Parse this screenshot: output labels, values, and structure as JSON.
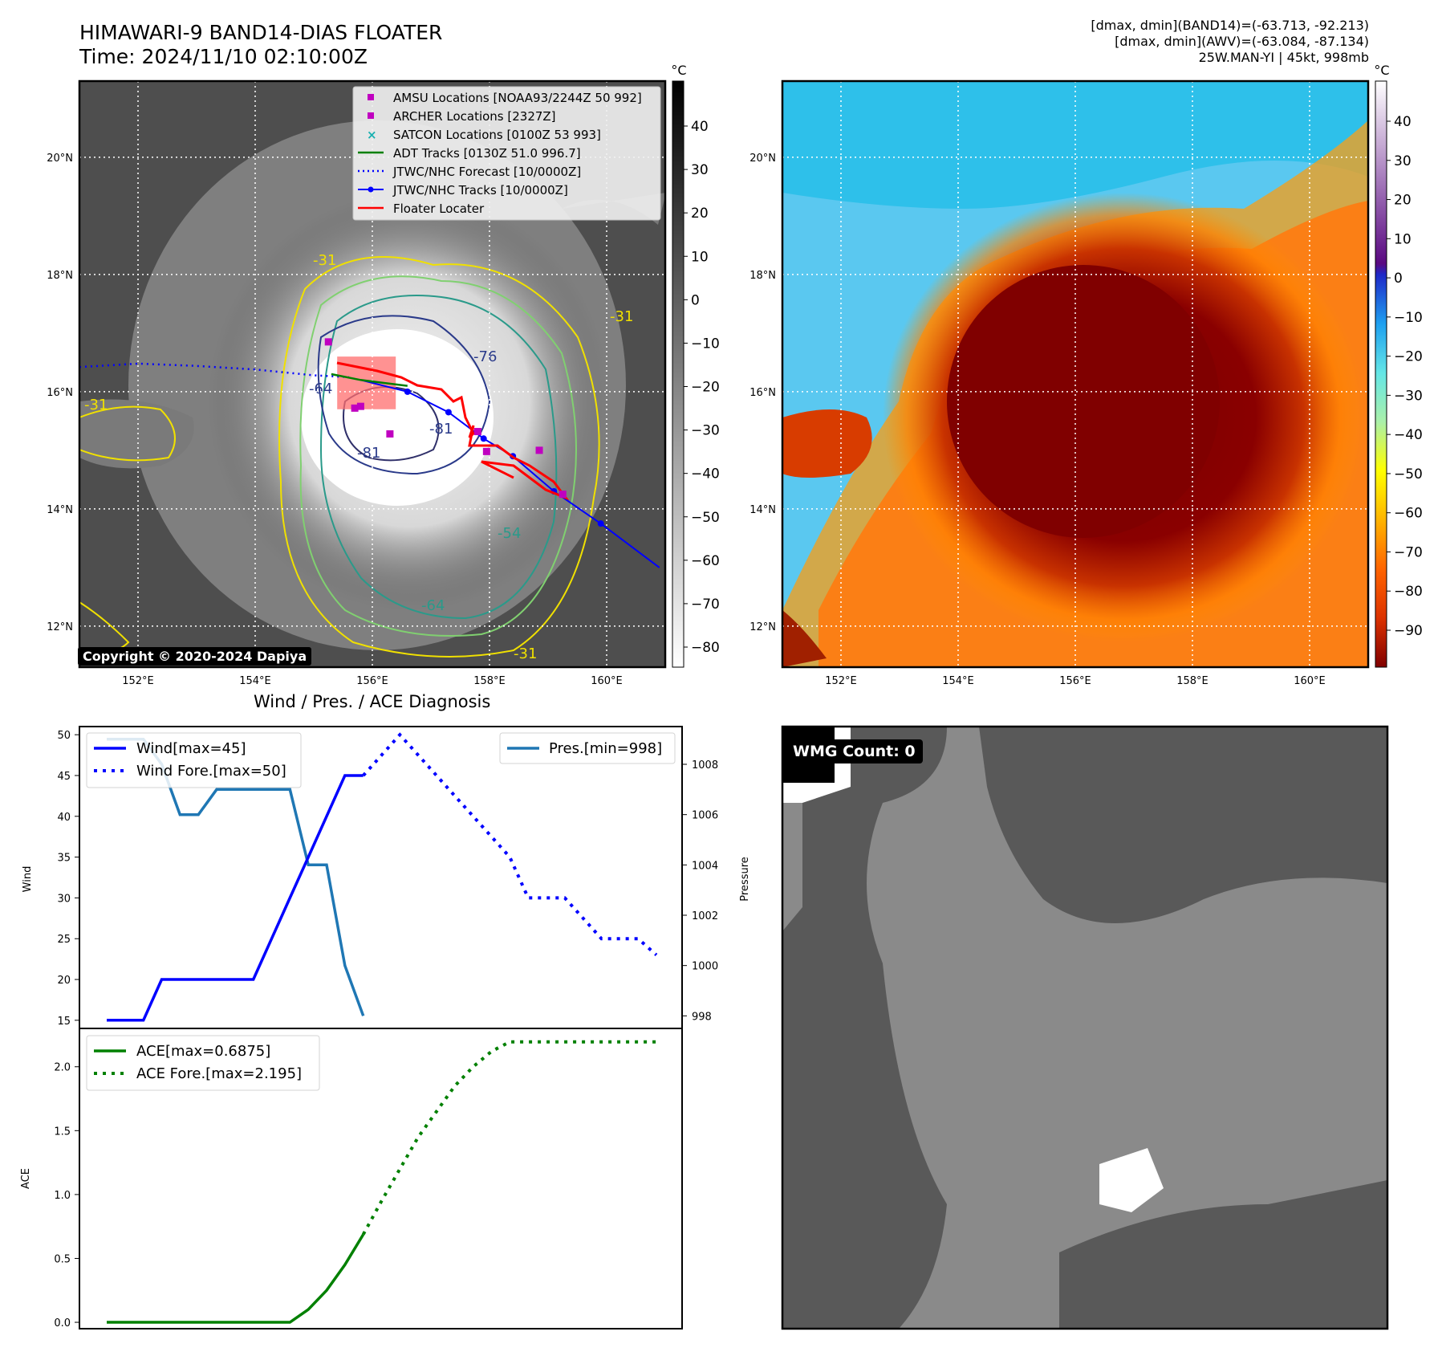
{
  "header": {
    "title_line1": "HIMAWARI-9 BAND14-DIAS FLOATER",
    "title_line2": "Time: 2024/11/10 02:10:00Z",
    "info_line1": "[dmax, dmin](BAND14)=(-63.713, -92.213)",
    "info_line2": "[dmax, dmin](AWV)=(-63.084, -87.134)",
    "info_line3": "25W.MAN-YI | 45kt, 998mb"
  },
  "copyright": "Copyright © 2020-2024 Dapiya",
  "wmg_label": "WMG Count: 0",
  "map": {
    "lat_labels": [
      "20°N",
      "18°N",
      "16°N",
      "14°N",
      "12°N"
    ],
    "lon_labels": [
      "152°E",
      "154°E",
      "156°E",
      "158°E",
      "160°E"
    ],
    "contour_labels": [
      "-76",
      "-64",
      "-81",
      "-81",
      "-54",
      "-64",
      "-31",
      "-31",
      "-31",
      "-31"
    ],
    "legend": [
      {
        "label": "AMSU Locations [NOAA93/2244Z 50 992]",
        "color": "#c000c0"
      },
      {
        "label": "ARCHER Locations [2327Z]",
        "color": "#c000c0"
      },
      {
        "label": "SATCON Locations [0100Z 53 993]",
        "color": "#18b0b0"
      },
      {
        "label": "ADT Tracks [0130Z 51.0 996.7]",
        "color": "#008000"
      },
      {
        "label": "JTWC/NHC Forecast [10/0000Z]",
        "color": "#0000ff"
      },
      {
        "label": "JTWC/NHC Tracks [10/0000Z]",
        "color": "#0000ff"
      },
      {
        "label": "Floater Locater",
        "color": "#ff0000"
      }
    ],
    "jtwc_forecast": {
      "lon": [
        151.0,
        152.0,
        153.0,
        154.0,
        155.0,
        155.6
      ],
      "lat": [
        16.42,
        16.48,
        16.44,
        16.38,
        16.28,
        16.25
      ]
    },
    "jtwc_track": {
      "lon": [
        155.8,
        156.6,
        157.3,
        157.9,
        158.4,
        159.1,
        159.9,
        160.9
      ],
      "lat": [
        16.2,
        16.0,
        15.65,
        15.2,
        14.9,
        14.3,
        13.75,
        13.0
      ]
    },
    "adt_track": {
      "lon": [
        155.3,
        155.8,
        156.2,
        156.6
      ],
      "lat": [
        16.3,
        16.2,
        16.15,
        16.1
      ]
    },
    "amsu_points": {
      "lon": [
        155.25,
        155.7,
        155.8,
        156.3,
        157.8,
        157.95,
        158.85,
        159.25
      ],
      "lat": [
        16.85,
        15.72,
        15.75,
        15.28,
        15.32,
        14.98,
        15.0,
        14.25
      ]
    },
    "floater_box": {
      "lon_min": 155.4,
      "lon_max": 156.4,
      "lat_min": 15.7,
      "lat_max": 16.6
    }
  },
  "colorbars": {
    "unit": "°C",
    "left_ticks": [
      "40",
      "30",
      "20",
      "10",
      "0",
      "−10",
      "−20",
      "−30",
      "−40",
      "−50",
      "−60",
      "−70",
      "−80"
    ],
    "right_ticks": [
      "40",
      "30",
      "20",
      "10",
      "0",
      "−10",
      "−20",
      "−30",
      "−40",
      "−50",
      "−60",
      "−70",
      "−80",
      "−90"
    ],
    "gray_top": "#000000",
    "gray_bottom": "#ffffff",
    "warm_top": "#ffffff",
    "warm_mid": "#5a0a82",
    "cold_stops": [
      "#1e28c8",
      "#1ea0f0",
      "#64e6e6",
      "#aaf0aa",
      "#ffff00",
      "#ffb400",
      "#ff6400",
      "#dc3200",
      "#800000"
    ]
  },
  "chart_data": [
    {
      "type": "line",
      "title": "Wind / Pres. / ACE Diagnosis",
      "ylabel": "Wind",
      "ylim": [
        14,
        51
      ],
      "y_ticks": [
        "50",
        "45",
        "40",
        "35",
        "30",
        "25",
        "20",
        "15"
      ],
      "x": [
        0,
        1,
        2,
        3,
        4,
        5,
        6,
        7,
        8,
        9,
        10,
        11,
        12,
        13,
        14,
        15,
        16,
        17,
        18,
        19,
        20,
        21,
        22,
        23,
        24,
        25,
        26,
        27,
        28,
        29,
        30
      ],
      "series": [
        {
          "name": "Wind[max=45]",
          "style": "solid",
          "color": "#0000ff",
          "x": [
            0,
            1,
            2,
            3,
            4,
            5,
            6,
            7,
            8,
            9,
            10,
            11,
            12,
            13,
            14
          ],
          "values": [
            15,
            15,
            15,
            20,
            20,
            20,
            20,
            20,
            20,
            25,
            30,
            35,
            40,
            45,
            45
          ]
        },
        {
          "name": "Wind Fore.[max=50]",
          "style": "dotted",
          "color": "#0000ff",
          "x": [
            14,
            15,
            16,
            17,
            18,
            19,
            20,
            21,
            22,
            23,
            24,
            25,
            26,
            27,
            28,
            29,
            30
          ],
          "values": [
            45,
            47.5,
            50,
            47.5,
            45,
            42.5,
            40,
            37.5,
            35,
            30,
            30,
            30,
            27.5,
            25,
            25,
            25,
            23
          ]
        },
        {
          "name": "Pres.[min=998]",
          "axis": "pressure",
          "style": "solid",
          "color": "#1f77b4",
          "x": [
            0,
            1,
            2,
            3,
            4,
            5,
            6,
            7,
            8,
            9,
            10,
            11,
            12,
            13,
            14
          ],
          "values": [
            1009,
            1009,
            1009,
            1008,
            1006,
            1006,
            1007,
            1007,
            1007,
            1007,
            1007,
            1004,
            1004,
            1000,
            998
          ]
        }
      ],
      "pressure_axis": {
        "label": "Pressure",
        "ylim": [
          997.5,
          1009.5
        ],
        "ticks": [
          "1008",
          "1006",
          "1004",
          "1002",
          "1000",
          "998"
        ]
      }
    },
    {
      "type": "line",
      "ylabel": "ACE",
      "ylim": [
        -0.05,
        2.3
      ],
      "y_ticks": [
        "2.0",
        "1.5",
        "1.0",
        "0.5",
        "0.0"
      ],
      "series": [
        {
          "name": "ACE[max=0.6875]",
          "style": "solid",
          "color": "#008000",
          "x": [
            0,
            1,
            2,
            3,
            4,
            5,
            6,
            7,
            8,
            9,
            10,
            11,
            12,
            13,
            14
          ],
          "values": [
            0,
            0,
            0,
            0,
            0,
            0,
            0,
            0,
            0,
            0,
            0,
            0.1,
            0.25,
            0.45,
            0.6875
          ]
        },
        {
          "name": "ACE Fore.[max=2.195]",
          "style": "dotted",
          "color": "#008000",
          "x": [
            14,
            15,
            16,
            17,
            18,
            19,
            20,
            21,
            22,
            23,
            24,
            25,
            26,
            27,
            28,
            29,
            30
          ],
          "values": [
            0.6875,
            0.95,
            1.2,
            1.45,
            1.65,
            1.85,
            2.0,
            2.12,
            2.195,
            2.195,
            2.195,
            2.195,
            2.195,
            2.195,
            2.195,
            2.195,
            2.195
          ]
        }
      ]
    }
  ]
}
